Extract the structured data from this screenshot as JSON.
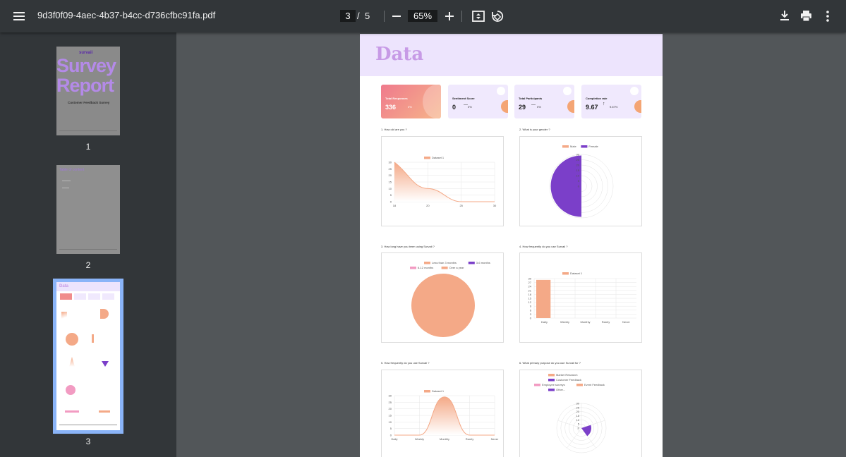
{
  "toolbar": {
    "filename": "9d3f0f09-4aec-4b37-b4cc-d736cfbc91fa.pdf",
    "current_page": "3",
    "separator": "/",
    "total_pages": "5",
    "zoom": "65%"
  },
  "sidebar": {
    "thumbnails": [
      {
        "number": "1",
        "brand": "survaii",
        "title_line1": "Survey",
        "title_line2": "Report",
        "subtitle": "Customer Feedback Survey"
      },
      {
        "number": "2",
        "heading": "Table of content"
      },
      {
        "number": "3",
        "heading": "Data",
        "selected": true
      }
    ]
  },
  "page": {
    "title": "Data",
    "cards": [
      {
        "label": "Total Responses",
        "value": "336",
        "pct": "0%"
      },
      {
        "label": "Sentiment Score",
        "value": "0",
        "pct": "0%"
      },
      {
        "label": "Total Participants",
        "value": "29",
        "pct": "0%"
      },
      {
        "label": "Completion rate",
        "value": "9.67",
        "pct": "9.67%"
      }
    ],
    "questions": [
      "1. How old are you ?",
      "2. What is your gender ?",
      "3. How long have you been using Survaii ?",
      "4. How frequently do you use Survaii ?",
      "5. How frequently do you use Survaii ?",
      "6. What primary purpose do you use Survaii for ?"
    ]
  },
  "chart_data": [
    {
      "type": "area",
      "title": "1. How old are you ?",
      "legend": [
        "Dataset 1"
      ],
      "x": [
        "18",
        "20",
        "25",
        "30"
      ],
      "y_ticks": [
        "0",
        "5",
        "10",
        "15",
        "20",
        "25",
        "30"
      ],
      "series": [
        {
          "name": "Dataset 1",
          "values": [
            30,
            10,
            0,
            0
          ]
        }
      ],
      "ylim": [
        0,
        30
      ]
    },
    {
      "type": "pie",
      "title": "2. What is your gender ?",
      "legend": [
        "Male",
        "Female"
      ],
      "r_ticks": [
        "30",
        "25",
        "20",
        "15",
        "10",
        "5",
        "0"
      ],
      "values": [
        0,
        29
      ],
      "colors": [
        "#f4a987",
        "#7b3fc9"
      ]
    },
    {
      "type": "pie",
      "title": "3. How long have you been using Survaii ?",
      "legend": [
        "Less than 3 months",
        "3-6 months",
        "6-12 months",
        "Over a year"
      ],
      "values": [
        29,
        0,
        0,
        0
      ],
      "colors": [
        "#f4a987",
        "#7b3fc9",
        "#f29bc2",
        "#f4a987"
      ]
    },
    {
      "type": "bar",
      "title": "4. How frequently do you use Survaii ?",
      "legend": [
        "Dataset 1"
      ],
      "categories": [
        "Daily",
        "Weekly",
        "Monthly",
        "Rarely",
        "Never"
      ],
      "y_ticks": [
        "0",
        "3",
        "6",
        "9",
        "12",
        "15",
        "18",
        "21",
        "24",
        "27",
        "30"
      ],
      "values": [
        29,
        0,
        0,
        0,
        0
      ],
      "ylim": [
        0,
        30
      ]
    },
    {
      "type": "area",
      "title": "5. How frequently do you use Survaii ?",
      "legend": [
        "Dataset 1"
      ],
      "categories": [
        "Daily",
        "Weekly",
        "Monthly",
        "Rarely",
        "Never"
      ],
      "y_ticks": [
        "0",
        "5",
        "10",
        "15",
        "20",
        "25",
        "30"
      ],
      "values": [
        0,
        0,
        29,
        0,
        0
      ],
      "ylim": [
        0,
        30
      ]
    },
    {
      "type": "pie",
      "title": "6. What primary purpose do you use Survaii for ?",
      "legend": [
        "Market Research",
        "Customer Feedback",
        "Employee surveys",
        "Event Feedback",
        "Other..."
      ],
      "r_ticks": [
        "30",
        "25",
        "20",
        "15",
        "10",
        "5",
        "0"
      ],
      "values": [
        0,
        12,
        0,
        0,
        0
      ],
      "colors": [
        "#f4a987",
        "#7b3fc9",
        "#f29bc2",
        "#f4a987",
        "#7b3fc9"
      ]
    }
  ],
  "colors": {
    "toolbar_bg": "#323639",
    "viewer_bg": "#525659",
    "accent": "#8ab4f8",
    "chart_fill": "#f4a987",
    "chart_purple": "#7b3fc9"
  }
}
